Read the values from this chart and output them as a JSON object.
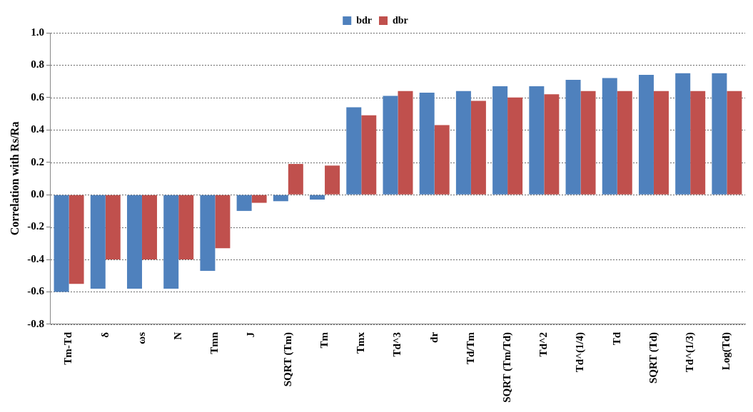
{
  "chart_data": {
    "type": "bar",
    "ylabel": "Correlation with Rs/Ra",
    "categories": [
      "Tm-Td",
      "δ",
      "ωs",
      "N",
      "Tmn",
      "J",
      "SQRT (Tm)",
      "Tm",
      "Tmx",
      "Td^3",
      "dr",
      "Td/Tm",
      "SQRT (Tm/Td)",
      "Td^2",
      "Td^(1/4)",
      "Td",
      "SQRT (Td)",
      "Td^(1/3)",
      "Log(Td)"
    ],
    "series": [
      {
        "name": "bdr",
        "color": "#4f81bd",
        "values": [
          -0.6,
          -0.58,
          -0.58,
          -0.58,
          -0.47,
          -0.1,
          -0.04,
          -0.03,
          0.54,
          0.61,
          0.63,
          0.64,
          0.67,
          0.67,
          0.71,
          0.72,
          0.74,
          0.75,
          0.75
        ]
      },
      {
        "name": "dbr",
        "color": "#c0504d",
        "values": [
          -0.55,
          -0.4,
          -0.4,
          -0.4,
          -0.33,
          -0.05,
          0.19,
          0.18,
          0.49,
          0.64,
          0.43,
          0.58,
          0.6,
          0.62,
          0.64,
          0.64,
          0.64,
          0.64,
          0.64
        ]
      }
    ],
    "ylim": [
      -0.8,
      1.0
    ],
    "yticks": [
      {
        "value": -0.8,
        "label": "-0.8"
      },
      {
        "value": -0.6,
        "label": "-0.6"
      },
      {
        "value": -0.4,
        "label": "-0.4"
      },
      {
        "value": -0.2,
        "label": "-0.2"
      },
      {
        "value": 0,
        "label": "0.0"
      },
      {
        "value": 0.2,
        "label": "0.2"
      },
      {
        "value": 0.4,
        "label": "0.4"
      },
      {
        "value": 0.6,
        "label": "0.6"
      },
      {
        "value": 0.8,
        "label": "0.8"
      },
      {
        "value": 1.0,
        "label": "1.0"
      }
    ],
    "grid": "y",
    "legend": "top"
  }
}
